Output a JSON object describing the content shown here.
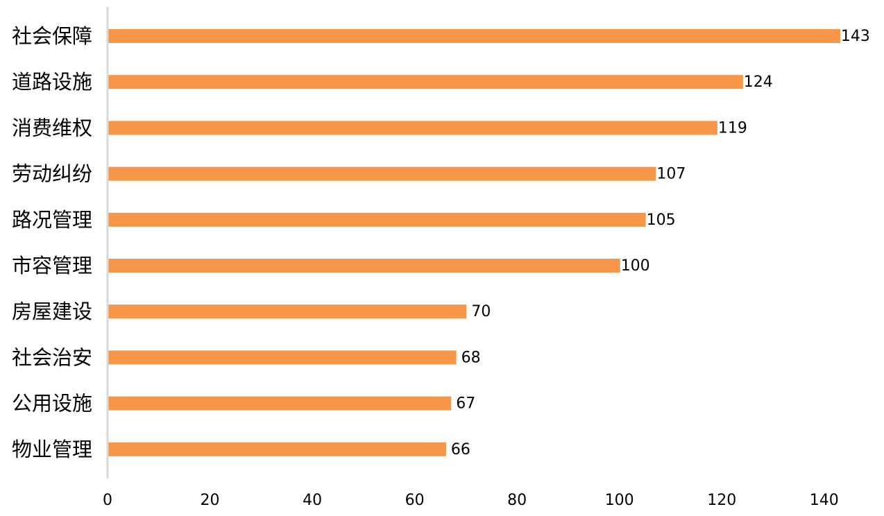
{
  "chart_data": {
    "type": "bar",
    "orientation": "horizontal",
    "categories": [
      "社会保障",
      "道路设施",
      "消费维权",
      "劳动纠纷",
      "路况管理",
      "市容管理",
      "房屋建设",
      "社会治安",
      "公用设施",
      "物业管理"
    ],
    "values": [
      143,
      124,
      119,
      107,
      105,
      100,
      70,
      68,
      67,
      66
    ],
    "value_labels": [
      "143",
      "124",
      "119",
      "107",
      "105",
      "100",
      "70",
      "68",
      "67",
      "66"
    ],
    "x_ticks": [
      "0",
      "20",
      "40",
      "60",
      "80",
      "100",
      "120",
      "140"
    ],
    "xlim": [
      0,
      143
    ],
    "title": "",
    "xlabel": "",
    "ylabel": "",
    "grid": false,
    "legend": "none",
    "bar_color": "#F79646",
    "axis_color": "#D9D9D9"
  }
}
